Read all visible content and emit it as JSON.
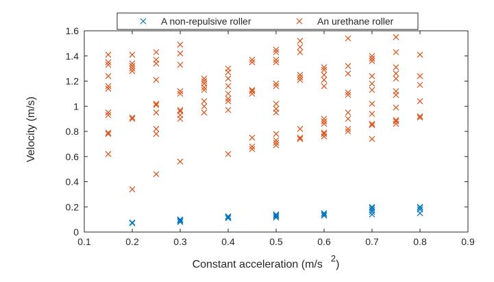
{
  "chart_data": {
    "type": "scatter",
    "title": "",
    "xlabel": "Constant acceleration (m/s",
    "xlabel_superscript": "2",
    "xlabel_suffix": ")",
    "ylabel": "Velocity (m/s)",
    "xlim": [
      0.1,
      0.9
    ],
    "ylim": [
      0,
      1.6
    ],
    "xticks": [
      "0.1",
      "0.2",
      "0.3",
      "0.4",
      "0.5",
      "0.6",
      "0.7",
      "0.8",
      "0.9"
    ],
    "yticks": [
      "0",
      "0.2",
      "0.4",
      "0.6",
      "0.8",
      "1",
      "1.2",
      "1.4",
      "1.6"
    ],
    "grid": false,
    "legend": {
      "placement": "top",
      "orientation": "horizontal"
    },
    "marker": "x",
    "series": [
      {
        "name": "A non-repulsive roller",
        "color": "#0072BD",
        "points": [
          [
            0.2,
            0.07
          ],
          [
            0.2,
            0.075
          ],
          [
            0.3,
            0.08
          ],
          [
            0.3,
            0.09
          ],
          [
            0.3,
            0.095
          ],
          [
            0.3,
            0.1
          ],
          [
            0.4,
            0.11
          ],
          [
            0.4,
            0.12
          ],
          [
            0.4,
            0.125
          ],
          [
            0.5,
            0.115
          ],
          [
            0.5,
            0.125
          ],
          [
            0.5,
            0.135
          ],
          [
            0.5,
            0.14
          ],
          [
            0.6,
            0.13
          ],
          [
            0.6,
            0.14
          ],
          [
            0.6,
            0.15
          ],
          [
            0.7,
            0.14
          ],
          [
            0.7,
            0.16
          ],
          [
            0.7,
            0.175
          ],
          [
            0.7,
            0.19
          ],
          [
            0.7,
            0.2
          ],
          [
            0.8,
            0.15
          ],
          [
            0.8,
            0.18
          ],
          [
            0.8,
            0.195
          ],
          [
            0.8,
            0.2
          ]
        ]
      },
      {
        "name": "An urethane roller",
        "color": "#D95319",
        "points": [
          [
            0.15,
            0.62
          ],
          [
            0.15,
            0.78
          ],
          [
            0.15,
            0.79
          ],
          [
            0.15,
            0.93
          ],
          [
            0.15,
            0.95
          ],
          [
            0.15,
            1.14
          ],
          [
            0.15,
            1.16
          ],
          [
            0.15,
            1.24
          ],
          [
            0.15,
            1.33
          ],
          [
            0.15,
            1.35
          ],
          [
            0.15,
            1.41
          ],
          [
            0.2,
            0.34
          ],
          [
            0.2,
            0.9
          ],
          [
            0.2,
            0.91
          ],
          [
            0.2,
            1.28
          ],
          [
            0.2,
            1.3
          ],
          [
            0.2,
            1.32
          ],
          [
            0.2,
            1.34
          ],
          [
            0.2,
            1.41
          ],
          [
            0.25,
            0.46
          ],
          [
            0.25,
            0.78
          ],
          [
            0.25,
            0.82
          ],
          [
            0.25,
            0.95
          ],
          [
            0.25,
            1.01
          ],
          [
            0.25,
            1.02
          ],
          [
            0.25,
            1.21
          ],
          [
            0.25,
            1.34
          ],
          [
            0.25,
            1.37
          ],
          [
            0.25,
            1.43
          ],
          [
            0.3,
            0.56
          ],
          [
            0.3,
            0.9
          ],
          [
            0.3,
            0.93
          ],
          [
            0.3,
            0.96
          ],
          [
            0.3,
            0.97
          ],
          [
            0.3,
            1.1
          ],
          [
            0.3,
            1.12
          ],
          [
            0.3,
            1.33
          ],
          [
            0.3,
            1.42
          ],
          [
            0.3,
            1.49
          ],
          [
            0.35,
            0.95
          ],
          [
            0.35,
            1.0
          ],
          [
            0.35,
            1.04
          ],
          [
            0.35,
            1.13
          ],
          [
            0.35,
            1.15
          ],
          [
            0.35,
            1.18
          ],
          [
            0.35,
            1.2
          ],
          [
            0.35,
            1.22
          ],
          [
            0.4,
            0.62
          ],
          [
            0.4,
            0.97
          ],
          [
            0.4,
            1.04
          ],
          [
            0.4,
            1.06
          ],
          [
            0.4,
            1.1
          ],
          [
            0.4,
            1.16
          ],
          [
            0.4,
            1.22
          ],
          [
            0.4,
            1.27
          ],
          [
            0.4,
            1.3
          ],
          [
            0.45,
            0.66
          ],
          [
            0.45,
            0.68
          ],
          [
            0.45,
            0.75
          ],
          [
            0.45,
            1.1
          ],
          [
            0.45,
            1.12
          ],
          [
            0.45,
            1.13
          ],
          [
            0.45,
            1.35
          ],
          [
            0.45,
            1.37
          ],
          [
            0.5,
            0.69
          ],
          [
            0.5,
            0.71
          ],
          [
            0.5,
            0.73
          ],
          [
            0.5,
            0.78
          ],
          [
            0.5,
            0.95
          ],
          [
            0.5,
            0.98
          ],
          [
            0.5,
            1.02
          ],
          [
            0.5,
            1.16
          ],
          [
            0.5,
            1.18
          ],
          [
            0.5,
            1.35
          ],
          [
            0.5,
            1.37
          ],
          [
            0.5,
            1.43
          ],
          [
            0.5,
            1.45
          ],
          [
            0.55,
            0.74
          ],
          [
            0.55,
            0.75
          ],
          [
            0.55,
            0.82
          ],
          [
            0.55,
            1.21
          ],
          [
            0.55,
            1.23
          ],
          [
            0.55,
            1.25
          ],
          [
            0.55,
            1.43
          ],
          [
            0.55,
            1.47
          ],
          [
            0.55,
            1.52
          ],
          [
            0.6,
            0.76
          ],
          [
            0.6,
            0.78
          ],
          [
            0.6,
            0.79
          ],
          [
            0.6,
            0.86
          ],
          [
            0.6,
            0.88
          ],
          [
            0.6,
            0.9
          ],
          [
            0.6,
            1.16
          ],
          [
            0.6,
            1.21
          ],
          [
            0.6,
            1.25
          ],
          [
            0.6,
            1.29
          ],
          [
            0.6,
            1.31
          ],
          [
            0.65,
            0.8
          ],
          [
            0.65,
            0.82
          ],
          [
            0.65,
            0.9
          ],
          [
            0.65,
            0.95
          ],
          [
            0.65,
            1.09
          ],
          [
            0.65,
            1.11
          ],
          [
            0.65,
            1.26
          ],
          [
            0.65,
            1.32
          ],
          [
            0.65,
            1.54
          ],
          [
            0.7,
            0.74
          ],
          [
            0.7,
            0.85
          ],
          [
            0.7,
            0.86
          ],
          [
            0.7,
            0.94
          ],
          [
            0.7,
            1.02
          ],
          [
            0.7,
            1.13
          ],
          [
            0.7,
            1.18
          ],
          [
            0.7,
            1.24
          ],
          [
            0.7,
            1.36
          ],
          [
            0.7,
            1.38
          ],
          [
            0.7,
            1.4
          ],
          [
            0.75,
            0.86
          ],
          [
            0.75,
            0.88
          ],
          [
            0.75,
            0.89
          ],
          [
            0.75,
            0.99
          ],
          [
            0.75,
            1.09
          ],
          [
            0.75,
            1.12
          ],
          [
            0.75,
            1.22
          ],
          [
            0.75,
            1.26
          ],
          [
            0.75,
            1.31
          ],
          [
            0.75,
            1.43
          ],
          [
            0.75,
            1.55
          ],
          [
            0.8,
            0.91
          ],
          [
            0.8,
            0.92
          ],
          [
            0.8,
            1.04
          ],
          [
            0.8,
            1.17
          ],
          [
            0.8,
            1.24
          ],
          [
            0.8,
            1.41
          ]
        ]
      }
    ]
  }
}
